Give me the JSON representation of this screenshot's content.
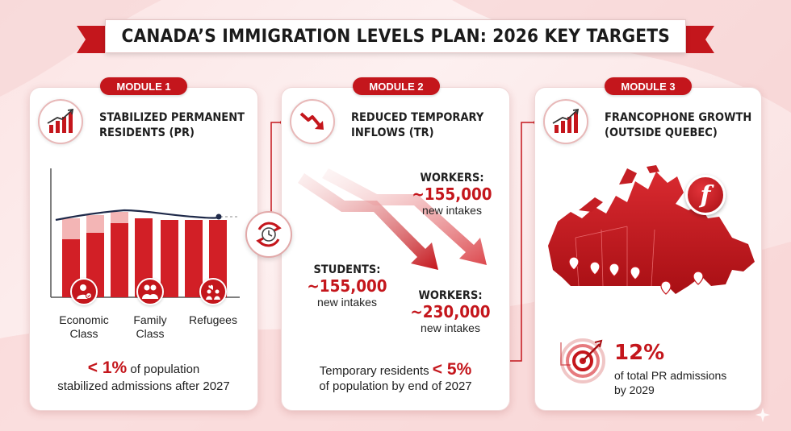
{
  "title": "CANADA’S IMMIGRATION LEVELS PLAN: 2026 KEY TARGETS",
  "colors": {
    "accent": "#c4161c",
    "accent_light": "#f3b5b5",
    "dark_line": "#1f2a4a"
  },
  "modules": [
    {
      "pill": "MODULE 1",
      "icon": "bar-chart-growth-icon",
      "heading_line1": "STABILIZED PERMANENT",
      "heading_line2": "RESIDENTS (PR)",
      "categories": [
        {
          "icon": "economic-person-icon",
          "line1": "Economic",
          "line2": "Class"
        },
        {
          "icon": "family-icon",
          "line1": "Family",
          "line2": "Class"
        },
        {
          "icon": "refugees-icon",
          "line1": "Refugees",
          "line2": ""
        }
      ],
      "stat_value": "< 1%",
      "stat_text_a": "of population",
      "stat_text_b": "stabilized admissions after 2027"
    },
    {
      "pill": "MODULE 2",
      "icon": "trending-down-icon",
      "heading_line1": "REDUCED TEMPORARY",
      "heading_line2": "INFLOWS (TR)",
      "blocks": [
        {
          "label": "WORKERS:",
          "value": "~155,000",
          "sub": "new intakes"
        },
        {
          "label": "STUDENTS:",
          "value": "~155,000",
          "sub": "new intakes"
        },
        {
          "label": "WORKERS:",
          "value": "~230,000",
          "sub": "new intakes"
        }
      ],
      "stat_text_a": "Temporary residents",
      "stat_value": "< 5%",
      "stat_text_b": "of population by end of 2027"
    },
    {
      "pill": "MODULE 3",
      "icon": "bar-chart-growth-icon",
      "heading_line1": "FRANCOPHONE GROWTH",
      "heading_line2": "(OUTSIDE QUEBEC)",
      "badge_letter": "f",
      "pct": "12%",
      "pct_sub_line1": "of total PR admissions",
      "pct_sub_line2": "by 2029"
    }
  ]
}
